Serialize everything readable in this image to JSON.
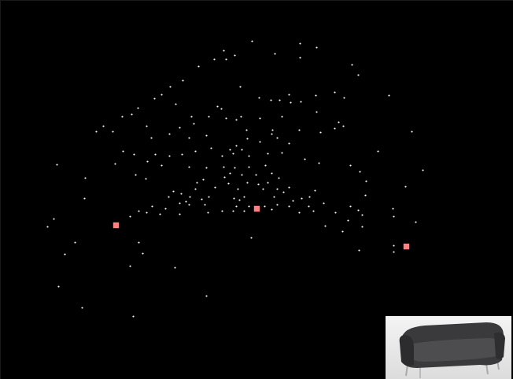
{
  "chart_data": {
    "type": "scatter",
    "xlim": [
      0,
      652
    ],
    "ylim": [
      482,
      0
    ],
    "tick_labels": false,
    "series": [
      {
        "color": "#ffffff",
        "marker": "dot",
        "x": [
          320,
          381,
          402,
          284,
          349,
          298,
          272,
          287,
          381,
          252,
          447,
          455,
          232,
          216,
          305,
          205,
          367,
          494,
          196,
          329,
          344,
          355,
          382,
          401,
          425,
          437,
          369,
          223,
          175,
          276,
          281,
          167,
          155,
          243,
          265,
          287,
          306,
          300,
          330,
          358,
          402,
          430,
          436,
          246,
          131,
          122,
          143,
          186,
          228,
          215,
          313,
          346,
          345,
          380,
          407,
          425,
          523,
          192,
          240,
          262,
          314,
          330,
          352,
          367,
          300,
          268,
          292,
          307,
          296,
          248,
          156,
          170,
          197,
          215,
          231,
          282,
          316,
          340,
          358,
          387,
          405,
          480,
          445,
          457,
          465,
          72,
          146,
          187,
          205,
          240,
          262,
          284,
          298,
          316,
          337,
          292,
          285,
          307,
          325,
          345,
          354,
          537,
          108,
          172,
          185,
          250,
          258,
          290,
          314,
          328,
          340,
          248,
          273,
          302,
          334,
          352,
          360,
          367,
          400,
          393,
          515,
          107,
          220,
          230,
          214,
          241,
          236,
          256,
          265,
          297,
          304,
          310,
          348,
          383,
          372,
          367,
          411,
          445,
          464,
          193,
          210,
          228,
          240,
          260,
          300,
          316,
          336,
          352,
          392,
          398,
          186,
          176,
          165,
          203,
          228,
          264,
          282,
          296,
          310,
          345,
          380,
          426,
          455,
          460,
          499,
          500,
          68,
          60,
          95,
          82,
          176,
          181,
          165,
          222,
          319,
          413,
          435,
          460,
          442,
          528,
          456,
          500,
          500,
          74,
          104,
          169,
          262
        ],
        "y": [
          52,
          55,
          60,
          64,
          68,
          70,
          75,
          75,
          73,
          84,
          82,
          95,
          102,
          110,
          110,
          120,
          120,
          121,
          125,
          124,
          127,
          127,
          129,
          121,
          117,
          124,
          130,
          132,
          137,
          135,
          138,
          145,
          148,
          148,
          148,
          150,
          148,
          152,
          150,
          148,
          142,
          155,
          160,
          157,
          160,
          167,
          167,
          160,
          162,
          170,
          165,
          165,
          170,
          165,
          168,
          163,
          167,
          175,
          175,
          172,
          176,
          180,
          175,
          182,
          185,
          188,
          190,
          190,
          195,
          192,
          192,
          196,
          196,
          198,
          196,
          198,
          198,
          195,
          194,
          202,
          207,
          192,
          210,
          218,
          230,
          209,
          208,
          205,
          210,
          212,
          213,
          212,
          213,
          212,
          210,
          220,
          225,
          222,
          222,
          220,
          226,
          216,
          226,
          222,
          227,
          232,
          228,
          233,
          232,
          234,
          232,
          240,
          238,
          240,
          240,
          240,
          244,
          238,
          242,
          250,
          237,
          252,
          243,
          246,
          250,
          250,
          256,
          253,
          250,
          252,
          254,
          250,
          250,
          252,
          255,
          262,
          258,
          262,
          248,
          262,
          265,
          258,
          260,
          260,
          262,
          262,
          262,
          260,
          262,
          268,
          270,
          268,
          275,
          272,
          272,
          270,
          268,
          268,
          268,
          266,
          270,
          270,
          267,
          273,
          265,
          275,
          278,
          288,
          308,
          323,
          308,
          322,
          338,
          340,
          302,
          287,
          294,
          288,
          280,
          282,
          318,
          312,
          320,
          364,
          391,
          402,
          376
        ]
      },
      {
        "color": "#ff8080",
        "marker": "square",
        "x": [
          147,
          326,
          516
        ],
        "y": [
          286,
          265,
          313
        ]
      }
    ]
  }
}
